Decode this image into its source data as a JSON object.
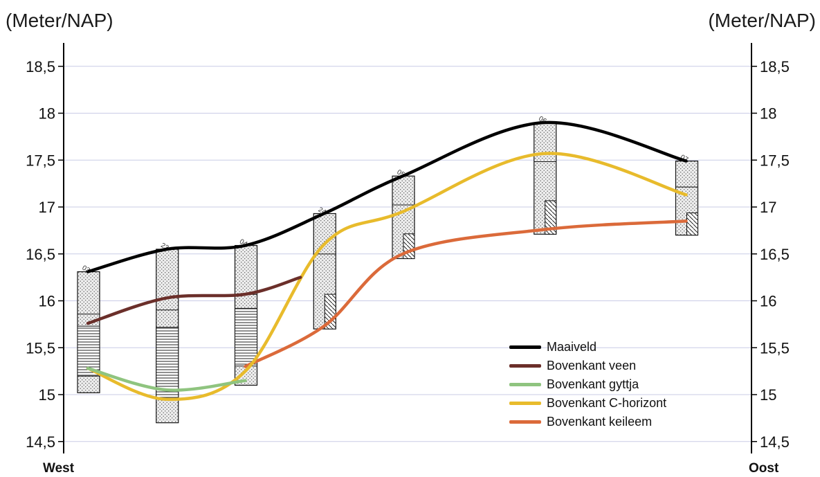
{
  "chart_data": {
    "type": "line",
    "y_axis_label_left": "(Meter/NAP)",
    "y_axis_label_right": "(Meter/NAP)",
    "x_start_label": "West",
    "x_end_label": "Oost",
    "ylim": [
      14.4,
      18.8
    ],
    "yticks": [
      14.5,
      15,
      15.5,
      16,
      16.5,
      17,
      17.5,
      18,
      18.5
    ],
    "ytick_labels": [
      "14,5",
      "15",
      "15,5",
      "16",
      "16,5",
      "17",
      "17,5",
      "18",
      "18,5"
    ],
    "grid": true,
    "legend_position": "bottom-right",
    "boreholes": [
      {
        "label": "03",
        "x": 0,
        "top": 16.31,
        "bottom": 15.02
      },
      {
        "label": "23",
        "x": 1,
        "top": 16.55,
        "bottom": 14.7
      },
      {
        "label": "04",
        "x": 2,
        "top": 16.59,
        "bottom": 15.1
      },
      {
        "label": "24",
        "x": 3,
        "top": 16.93,
        "bottom": 15.7
      },
      {
        "label": "05",
        "x": 4,
        "top": 17.33,
        "bottom": 16.45
      },
      {
        "label": "06",
        "x": 5.8,
        "top": 17.9,
        "bottom": 16.71
      },
      {
        "label": "07",
        "x": 7.6,
        "top": 17.49,
        "bottom": 16.7
      }
    ],
    "series": [
      {
        "name": "Maaiveld",
        "color": "#000000",
        "x": [
          0,
          1,
          2,
          3,
          4,
          5.8,
          7.6
        ],
        "y": [
          16.31,
          16.55,
          16.59,
          16.93,
          17.33,
          17.9,
          17.49
        ]
      },
      {
        "name": "Bovenkant veen",
        "color": "#6b2f2a",
        "x": [
          0,
          1,
          2,
          2.7
        ],
        "y": [
          15.76,
          16.03,
          16.07,
          16.25
        ]
      },
      {
        "name": "Bovenkant gyttja",
        "color": "#8fc47f",
        "x": [
          0,
          1,
          2
        ],
        "y": [
          15.28,
          15.05,
          15.15
        ]
      },
      {
        "name": "Bovenkant C-horizont",
        "color": "#e8bb2c",
        "x": [
          0,
          1,
          2,
          3,
          4,
          5.8,
          7.6
        ],
        "y": [
          15.28,
          14.95,
          15.25,
          16.6,
          16.95,
          17.57,
          17.13
        ]
      },
      {
        "name": "Bovenkant keileem",
        "color": "#db6a3a",
        "x": [
          2,
          3,
          4,
          5.8,
          7.6
        ],
        "y": [
          15.3,
          15.73,
          16.5,
          16.76,
          16.85
        ]
      }
    ]
  }
}
